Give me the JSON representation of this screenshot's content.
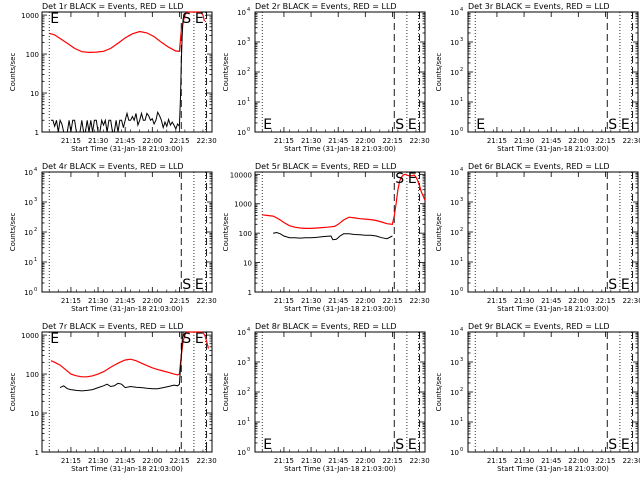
{
  "chart_data": [
    {
      "type": "line",
      "title": "Det 1r BLACK = Events, RED = LLD",
      "xlabel": "Start Time (31-Jan-18 21:03:00)",
      "ylabel": "Counts/sec",
      "yscale": "log",
      "yticks": [
        {
          "v": 1,
          "m": "1",
          "e": ""
        },
        {
          "v": 10,
          "m": "10",
          "e": ""
        },
        {
          "v": 100,
          "m": "100",
          "e": ""
        },
        {
          "v": 1000,
          "m": "1000",
          "e": ""
        }
      ],
      "ylim": [
        1,
        1200
      ],
      "markers": [
        {
          "label": "E",
          "t": 0,
          "y": 1000,
          "yb": ""
        },
        {
          "label": "S",
          "t": 73,
          "y": 1000,
          "yb": ""
        },
        {
          "label": "E",
          "t": 80,
          "y": 1000,
          "yb": ""
        }
      ],
      "series": [
        {
          "name": "LLD",
          "color": "#ff0000",
          "x": [
            0,
            3,
            6,
            10,
            14,
            18,
            22,
            26,
            30,
            34,
            38,
            42,
            46,
            50,
            54,
            58,
            62,
            66,
            70,
            72,
            73,
            73.8,
            74.5,
            75,
            75.6,
            76.2,
            77,
            78,
            79,
            80,
            81,
            82,
            83,
            84,
            85,
            85.8
          ],
          "y": [
            340,
            310,
            250,
            190,
            140,
            115,
            110,
            112,
            118,
            140,
            190,
            260,
            330,
            380,
            350,
            280,
            200,
            150,
            120,
            118,
            400,
            600,
            800,
            1000,
            1100,
            1200,
            1200,
            1200,
            1200,
            1200,
            1200,
            1200,
            1200,
            1150,
            1000,
            700
          ]
        },
        {
          "name": "Events",
          "color": "#000000",
          "x": [
            1,
            2,
            3,
            4,
            5,
            6,
            7,
            8,
            10,
            11,
            12,
            13,
            14,
            15,
            16,
            17,
            18,
            19,
            20,
            21,
            22,
            23,
            24,
            25,
            26,
            27,
            28,
            29,
            30,
            31,
            32,
            33,
            34,
            35,
            36,
            37,
            38,
            39,
            40,
            41,
            42,
            43,
            44,
            45,
            46,
            47,
            48,
            49,
            50,
            51,
            52,
            53,
            54,
            55,
            56,
            57,
            58,
            59,
            60,
            61,
            62,
            63,
            64,
            65,
            66,
            67,
            68,
            69,
            70,
            71,
            72,
            72.6,
            73,
            73.5,
            74,
            74.5
          ],
          "y": [
            2,
            2,
            1.4,
            2,
            1,
            2,
            1.6,
            1,
            1,
            2,
            1,
            2,
            2,
            1,
            1,
            1,
            2,
            1,
            1,
            2,
            1,
            2,
            1,
            2,
            2,
            1,
            1,
            2,
            1.5,
            2,
            1,
            2,
            2,
            1,
            1,
            2,
            1,
            2,
            2,
            1.3,
            2,
            3,
            2,
            2,
            2.5,
            2,
            3,
            1.5,
            2,
            3,
            2,
            2,
            3,
            2.6,
            2,
            2.2,
            1.6,
            2,
            3.2,
            2.6,
            2,
            1.3,
            1.8,
            1.4,
            2.1,
            1.5,
            1.8,
            1.5,
            1.2,
            1.6,
            1.4,
            8,
            60,
            300,
            800,
            1000
          ]
        }
      ]
    },
    {
      "type": "line",
      "title": "Det 2r BLACK = Events, RED = LLD",
      "xlabel": "Start Time (31-Jan-18 21:03:00)",
      "ylabel": "Counts/sec",
      "yscale": "log",
      "yticks": [
        {
          "v": 1,
          "m": "10",
          "e": "0"
        },
        {
          "v": 10,
          "m": "10",
          "e": "1"
        },
        {
          "v": 100,
          "m": "10",
          "e": "2"
        },
        {
          "v": 1000,
          "m": "10",
          "e": "3"
        },
        {
          "v": 10000,
          "m": "10",
          "e": "4"
        }
      ],
      "ylim": [
        1,
        10000
      ],
      "markers": [
        {
          "label": "E",
          "t": 0,
          "y": 1,
          "yb": "bottom"
        },
        {
          "label": "S",
          "t": 73,
          "y": 1,
          "yb": "bottom"
        },
        {
          "label": "E",
          "t": 80,
          "y": 1,
          "yb": "bottom"
        }
      ],
      "series": []
    },
    {
      "type": "line",
      "title": "Det 3r BLACK = Events, RED = LLD",
      "xlabel": "Start Time (31-Jan-18 21:03:00)",
      "ylabel": "Counts/sec",
      "yscale": "log",
      "yticks": [
        {
          "v": 1,
          "m": "10",
          "e": "0"
        },
        {
          "v": 10,
          "m": "10",
          "e": "1"
        },
        {
          "v": 100,
          "m": "10",
          "e": "2"
        },
        {
          "v": 1000,
          "m": "10",
          "e": "3"
        },
        {
          "v": 10000,
          "m": "10",
          "e": "4"
        }
      ],
      "ylim": [
        1,
        10000
      ],
      "markers": [
        {
          "label": "E",
          "t": 0,
          "y": 1,
          "yb": "bottom"
        },
        {
          "label": "S",
          "t": 73,
          "y": 1,
          "yb": "bottom"
        },
        {
          "label": "E",
          "t": 80,
          "y": 1,
          "yb": "bottom"
        }
      ],
      "series": []
    },
    {
      "type": "line",
      "title": "Det 4r BLACK = Events, RED = LLD",
      "xlabel": "Start Time (31-Jan-18 21:03:00)",
      "ylabel": "Counts/sec",
      "yscale": "log",
      "yticks": [
        {
          "v": 1,
          "m": "10",
          "e": "0"
        },
        {
          "v": 10,
          "m": "10",
          "e": "1"
        },
        {
          "v": 100,
          "m": "10",
          "e": "2"
        },
        {
          "v": 1000,
          "m": "10",
          "e": "3"
        },
        {
          "v": 10000,
          "m": "10",
          "e": "4"
        }
      ],
      "ylim": [
        1,
        10000
      ],
      "markers": [
        {
          "label": "S",
          "t": 73,
          "y": 1,
          "yb": "bottom"
        },
        {
          "label": "E",
          "t": 80,
          "y": 1,
          "yb": "bottom"
        }
      ],
      "series": []
    },
    {
      "type": "line",
      "title": "Det 5r BLACK = Events, RED = LLD",
      "xlabel": "Start Time (31-Jan-18 21:03:00)",
      "ylabel": "Counts/sec",
      "yscale": "log",
      "yticks": [
        {
          "v": 1,
          "m": "1",
          "e": ""
        },
        {
          "v": 10,
          "m": "10",
          "e": ""
        },
        {
          "v": 100,
          "m": "100",
          "e": ""
        },
        {
          "v": 1000,
          "m": "1000",
          "e": ""
        },
        {
          "v": 10000,
          "m": "10000",
          "e": ""
        }
      ],
      "ylim": [
        1,
        12000
      ],
      "markers": [
        {
          "label": "S",
          "t": 73,
          "y": 12000,
          "yb": ""
        },
        {
          "label": "E",
          "t": 80,
          "y": 12000,
          "yb": ""
        }
      ],
      "series": [
        {
          "name": "LLD",
          "color": "#ff0000",
          "x": [
            0,
            3,
            6,
            8,
            10,
            12,
            15,
            18,
            21,
            24,
            27,
            30,
            33,
            36,
            38,
            40,
            42,
            45,
            48,
            51,
            54,
            57,
            60,
            63,
            66,
            69,
            72,
            73,
            74,
            75,
            76,
            77,
            78,
            79,
            80,
            81,
            82,
            83,
            84,
            85,
            86,
            87,
            88,
            89,
            90
          ],
          "y": [
            420,
            400,
            380,
            330,
            280,
            230,
            180,
            160,
            150,
            145,
            145,
            150,
            155,
            160,
            165,
            170,
            200,
            280,
            350,
            330,
            310,
            300,
            290,
            270,
            240,
            210,
            200,
            400,
            1000,
            3000,
            6000,
            8000,
            9500,
            10000,
            9500,
            9000,
            9000,
            9000,
            9500,
            8000,
            6000,
            4000,
            2500,
            1800,
            1300
          ]
        },
        {
          "name": "Events",
          "color": "#000000",
          "x": [
            6,
            8,
            10,
            12,
            15,
            18,
            21,
            24,
            27,
            30,
            33,
            36,
            38,
            39,
            41,
            43,
            45,
            48,
            51,
            54,
            57,
            60,
            63,
            66,
            69,
            72
          ],
          "y": [
            100,
            105,
            95,
            80,
            70,
            70,
            68,
            70,
            70,
            72,
            75,
            78,
            80,
            60,
            62,
            80,
            95,
            95,
            90,
            88,
            85,
            85,
            80,
            70,
            65,
            80
          ]
        }
      ]
    },
    {
      "type": "line",
      "title": "Det 6r BLACK = Events, RED = LLD",
      "xlabel": "Start Time (31-Jan-18 21:03:00)",
      "ylabel": "Counts/sec",
      "yscale": "log",
      "yticks": [
        {
          "v": 1,
          "m": "10",
          "e": "0"
        },
        {
          "v": 10,
          "m": "10",
          "e": "1"
        },
        {
          "v": 100,
          "m": "10",
          "e": "2"
        },
        {
          "v": 1000,
          "m": "10",
          "e": "3"
        },
        {
          "v": 10000,
          "m": "10",
          "e": "4"
        }
      ],
      "ylim": [
        1,
        10000
      ],
      "markers": [
        {
          "label": "S",
          "t": 73,
          "y": 1,
          "yb": "bottom"
        },
        {
          "label": "E",
          "t": 80,
          "y": 1,
          "yb": "bottom"
        }
      ],
      "series": []
    },
    {
      "type": "line",
      "title": "Det 7r BLACK = Events, RED = LLD",
      "xlabel": "Start Time (31-Jan-18 21:03:00)",
      "ylabel": "Counts/sec",
      "yscale": "log",
      "yticks": [
        {
          "v": 1,
          "m": "1",
          "e": ""
        },
        {
          "v": 10,
          "m": "10",
          "e": ""
        },
        {
          "v": 100,
          "m": "100",
          "e": ""
        },
        {
          "v": 1000,
          "m": "1000",
          "e": ""
        }
      ],
      "ylim": [
        1,
        1200
      ],
      "markers": [
        {
          "label": "E",
          "t": 0,
          "y": 1200,
          "yb": ""
        },
        {
          "label": "S",
          "t": 73,
          "y": 1200,
          "yb": ""
        },
        {
          "label": "E",
          "t": 80,
          "y": 1200,
          "yb": ""
        }
      ],
      "series": [
        {
          "name": "LLD",
          "color": "#ff0000",
          "x": [
            1,
            3,
            6,
            9,
            12,
            15,
            18,
            21,
            24,
            27,
            30,
            33,
            36,
            39,
            42,
            45,
            48,
            51,
            54,
            57,
            60,
            63,
            66,
            69,
            71,
            72,
            73,
            74,
            75,
            76,
            77,
            78,
            79,
            80,
            81,
            82,
            83,
            84,
            85,
            86,
            87,
            88
          ],
          "y": [
            220,
            200,
            170,
            130,
            100,
            90,
            85,
            85,
            90,
            100,
            115,
            140,
            170,
            200,
            230,
            240,
            220,
            190,
            165,
            145,
            130,
            120,
            110,
            100,
            95,
            100,
            300,
            700,
            1000,
            1200,
            1200,
            1200,
            1200,
            1200,
            1200,
            1200,
            1200,
            1200,
            1150,
            1000,
            700,
            450
          ]
        },
        {
          "name": "Events",
          "color": "#000000",
          "x": [
            6,
            8,
            10,
            12,
            15,
            18,
            21,
            24,
            27,
            30,
            32,
            34,
            36,
            38,
            40,
            42,
            45,
            48,
            51,
            54,
            57,
            60,
            63,
            66,
            69,
            71,
            72,
            72.8,
            73.5,
            74
          ],
          "y": [
            45,
            50,
            42,
            40,
            38,
            37,
            38,
            40,
            45,
            50,
            55,
            48,
            50,
            58,
            55,
            45,
            48,
            46,
            45,
            43,
            42,
            42,
            45,
            48,
            52,
            50,
            55,
            200,
            700,
            1200
          ]
        }
      ]
    },
    {
      "type": "line",
      "title": "Det 8r BLACK = Events, RED = LLD",
      "xlabel": "Start Time (31-Jan-18 21:03:00)",
      "ylabel": "Counts/sec",
      "yscale": "log",
      "yticks": [
        {
          "v": 1,
          "m": "10",
          "e": "0"
        },
        {
          "v": 10,
          "m": "10",
          "e": "1"
        },
        {
          "v": 100,
          "m": "10",
          "e": "2"
        },
        {
          "v": 1000,
          "m": "10",
          "e": "3"
        },
        {
          "v": 10000,
          "m": "10",
          "e": "4"
        }
      ],
      "ylim": [
        1,
        10000
      ],
      "markers": [
        {
          "label": "E",
          "t": 0,
          "y": 1,
          "yb": "bottom"
        },
        {
          "label": "S",
          "t": 73,
          "y": 1,
          "yb": "bottom"
        },
        {
          "label": "E",
          "t": 80,
          "y": 1,
          "yb": "bottom"
        }
      ],
      "series": []
    },
    {
      "type": "line",
      "title": "Det 9r BLACK = Events, RED = LLD",
      "xlabel": "Start Time (31-Jan-18 21:03:00)",
      "ylabel": "Counts/sec",
      "yscale": "log",
      "yticks": [
        {
          "v": 1,
          "m": "10",
          "e": "0"
        },
        {
          "v": 10,
          "m": "10",
          "e": "1"
        },
        {
          "v": 100,
          "m": "10",
          "e": "2"
        },
        {
          "v": 1000,
          "m": "10",
          "e": "3"
        },
        {
          "v": 10000,
          "m": "10",
          "e": "4"
        }
      ],
      "ylim": [
        1,
        10000
      ],
      "markers": [
        {
          "label": "S",
          "t": 73,
          "y": 1,
          "yb": "bottom"
        },
        {
          "label": "E",
          "t": 80,
          "y": 1,
          "yb": "bottom"
        }
      ],
      "series": []
    }
  ],
  "time_axis": {
    "unit": "minutes after 21:03:00",
    "xlim": [
      -4,
      90
    ],
    "ticks": [
      {
        "t": 12,
        "label": "21:15"
      },
      {
        "t": 27,
        "label": "21:30"
      },
      {
        "t": 42,
        "label": "21:45"
      },
      {
        "t": 57,
        "label": "22:00"
      },
      {
        "t": 72,
        "label": "22:15"
      },
      {
        "t": 87,
        "label": "22:30"
      }
    ],
    "dotted_lines": [
      0,
      80,
      86.5
    ],
    "dashed_lines": [
      73,
      87
    ]
  },
  "colors": {
    "events": "#000000",
    "lld": "#ff0000",
    "background": "#ffffff"
  }
}
